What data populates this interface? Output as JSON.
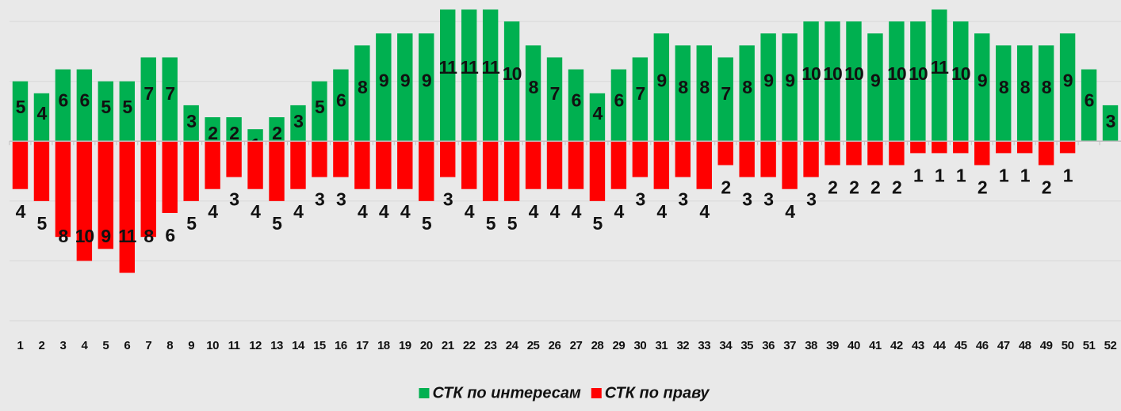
{
  "chart_data": {
    "type": "bar",
    "categories": [
      "1",
      "2",
      "3",
      "4",
      "5",
      "6",
      "7",
      "8",
      "9",
      "10",
      "11",
      "12",
      "13",
      "14",
      "15",
      "16",
      "17",
      "18",
      "19",
      "20",
      "21",
      "22",
      "23",
      "24",
      "25",
      "26",
      "27",
      "28",
      "29",
      "30",
      "31",
      "32",
      "33",
      "34",
      "35",
      "36",
      "37",
      "38",
      "39",
      "40",
      "41",
      "42",
      "43",
      "44",
      "45",
      "46",
      "47",
      "48",
      "49",
      "50",
      "51",
      "52"
    ],
    "series": [
      {
        "name": "СТК по интересам",
        "color": "#00b050",
        "values": [
          5,
          4,
          6,
          6,
          5,
          5,
          7,
          7,
          3,
          2,
          2,
          1,
          2,
          3,
          5,
          6,
          8,
          9,
          9,
          9,
          11,
          11,
          11,
          10,
          8,
          7,
          6,
          4,
          6,
          7,
          9,
          8,
          8,
          7,
          8,
          9,
          9,
          10,
          10,
          10,
          9,
          10,
          10,
          11,
          10,
          9,
          8,
          8,
          8,
          9,
          6,
          3
        ]
      },
      {
        "name": "СТК по праву",
        "color": "#ff0000",
        "values": [
          -4,
          -5,
          -8,
          -10,
          -9,
          -11,
          -8,
          -6,
          -5,
          -4,
          -3,
          -4,
          -5,
          -4,
          -3,
          -3,
          -4,
          -4,
          -4,
          -5,
          -3,
          -4,
          -5,
          -5,
          -4,
          -4,
          -4,
          -5,
          -4,
          -3,
          -4,
          -3,
          -4,
          -2,
          -3,
          -3,
          -4,
          -3,
          -2,
          -2,
          -2,
          -2,
          -1,
          -1,
          -1,
          -2,
          -1,
          -1,
          -2,
          -1,
          null,
          null
        ],
        "value_labels": [
          "4",
          "5",
          "8",
          "10",
          "9",
          "11",
          "8",
          "6",
          "5",
          "4",
          "3",
          "4",
          "5",
          "4",
          "3",
          "3",
          "4",
          "4",
          "4",
          "5",
          "3",
          "4",
          "5",
          "5",
          "4",
          "4",
          "4",
          "5",
          "4",
          "3",
          "4",
          "3",
          "4",
          "2",
          "3",
          "3",
          "4",
          "3",
          "2",
          "2",
          "2",
          "2",
          "1",
          "1",
          "1",
          "2",
          "1",
          "1",
          "2",
          "1",
          null,
          null
        ]
      }
    ],
    "ylim": [
      -15,
      11
    ],
    "yticks": [
      -15,
      -10,
      -5,
      0,
      5,
      10
    ],
    "grid": true,
    "legend": "bottom"
  }
}
